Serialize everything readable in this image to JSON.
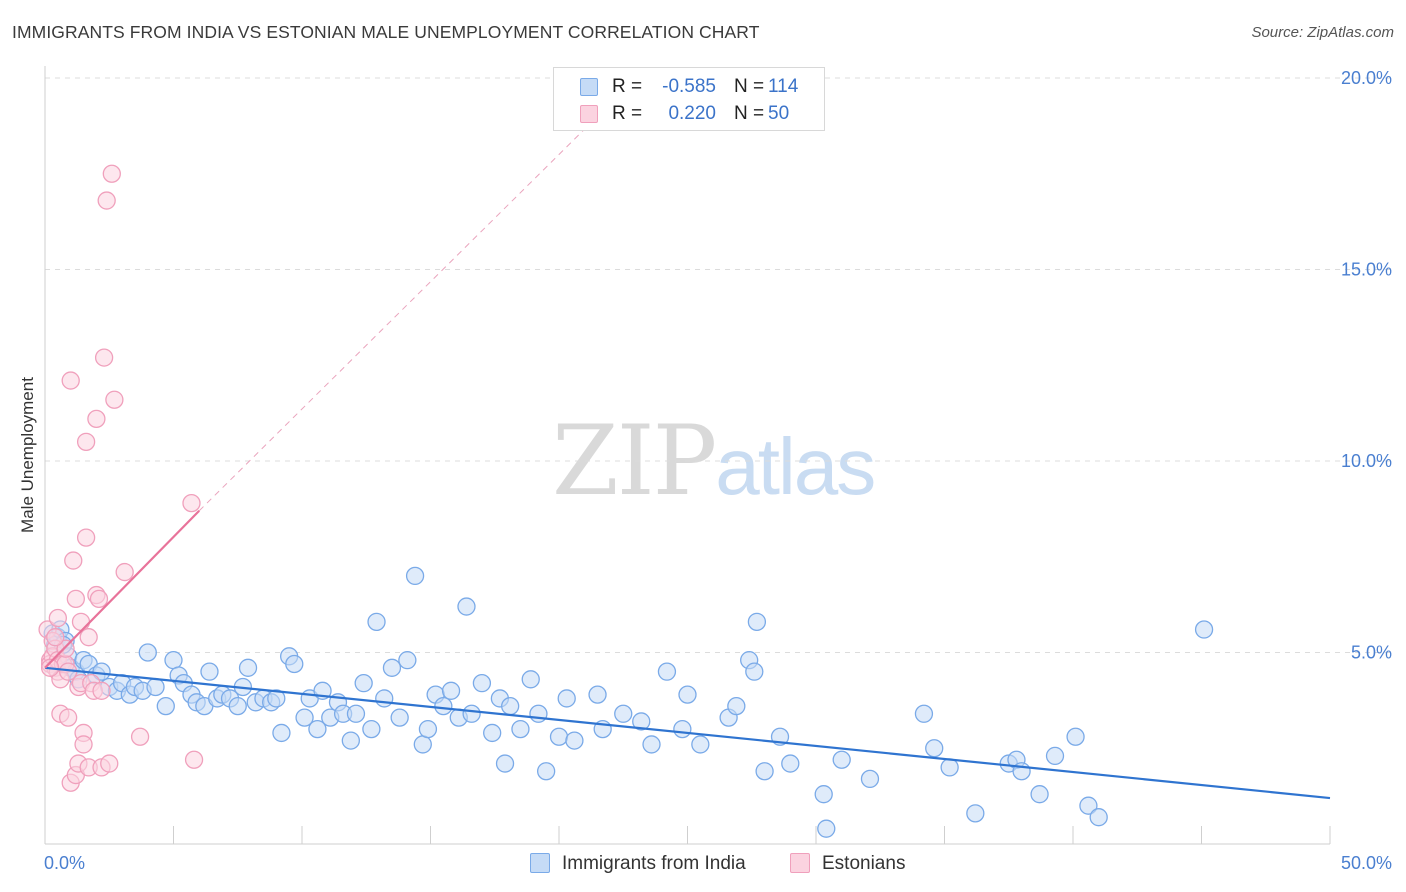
{
  "header": {
    "title": "IMMIGRANTS FROM INDIA VS ESTONIAN MALE UNEMPLOYMENT CORRELATION CHART",
    "source": "Source: ZipAtlas.com"
  },
  "watermark": {
    "part1": "ZIP",
    "part2": "atlas"
  },
  "legend": {
    "rows": [
      {
        "r_label": "R =",
        "r_value": "-0.585",
        "n_label": "N =",
        "n_value": "114",
        "color": "#7aaae8",
        "fill": "#c5dbf6"
      },
      {
        "r_label": "R =",
        "r_value": " 0.220",
        "n_label": "N =",
        "n_value": " 50",
        "color": "#f0a0bc",
        "fill": "#fbd3e0"
      }
    ]
  },
  "bottom_legend": {
    "items": [
      {
        "label": "Immigrants from India",
        "color": "#7aaae8",
        "fill": "#c5dbf6"
      },
      {
        "label": "Estonians",
        "color": "#f0a0bc",
        "fill": "#fbd3e0"
      }
    ]
  },
  "chart_data": {
    "type": "scatter",
    "title": "IMMIGRANTS FROM INDIA VS ESTONIAN MALE UNEMPLOYMENT CORRELATION CHART",
    "xlabel": "",
    "ylabel": "Male Unemployment",
    "xlim": [
      0,
      50
    ],
    "ylim": [
      0,
      20
    ],
    "x_tick_labels": [
      "0.0%",
      "50.0%"
    ],
    "y_tick_labels": [
      "5.0%",
      "10.0%",
      "15.0%",
      "20.0%"
    ],
    "y_ticks": [
      5,
      10,
      15,
      20
    ],
    "grid": "horizontal dashed",
    "legend_position": "top-center",
    "series": [
      {
        "name": "Immigrants from India",
        "color": "#5b93e0",
        "fill": "#c5dbf6",
        "stroke": "#7aaae8",
        "trend": {
          "x": [
            0,
            50
          ],
          "y": [
            4.6,
            1.2
          ],
          "color": "#2f74d0"
        },
        "points": [
          [
            0.3,
            5.5
          ],
          [
            0.4,
            5.2
          ],
          [
            0.5,
            5.4
          ],
          [
            0.6,
            5.6
          ],
          [
            0.8,
            5.3
          ],
          [
            0.9,
            4.9
          ],
          [
            1.0,
            4.6
          ],
          [
            1.2,
            4.5
          ],
          [
            1.5,
            4.8
          ],
          [
            1.7,
            4.7
          ],
          [
            2.0,
            4.4
          ],
          [
            2.2,
            4.5
          ],
          [
            2.5,
            4.1
          ],
          [
            2.8,
            4.0
          ],
          [
            3.0,
            4.2
          ],
          [
            3.3,
            3.9
          ],
          [
            3.5,
            4.1
          ],
          [
            3.8,
            4.0
          ],
          [
            4.0,
            5.0
          ],
          [
            4.3,
            4.1
          ],
          [
            4.7,
            3.6
          ],
          [
            5.0,
            4.8
          ],
          [
            5.2,
            4.4
          ],
          [
            5.4,
            4.2
          ],
          [
            5.7,
            3.9
          ],
          [
            5.9,
            3.7
          ],
          [
            6.2,
            3.6
          ],
          [
            6.4,
            4.5
          ],
          [
            6.7,
            3.8
          ],
          [
            6.9,
            3.9
          ],
          [
            7.2,
            3.8
          ],
          [
            7.5,
            3.6
          ],
          [
            7.7,
            4.1
          ],
          [
            7.9,
            4.6
          ],
          [
            8.2,
            3.7
          ],
          [
            8.5,
            3.8
          ],
          [
            8.8,
            3.7
          ],
          [
            9.0,
            3.8
          ],
          [
            9.2,
            2.9
          ],
          [
            9.5,
            4.9
          ],
          [
            9.7,
            4.7
          ],
          [
            10.1,
            3.3
          ],
          [
            10.3,
            3.8
          ],
          [
            10.6,
            3.0
          ],
          [
            10.8,
            4.0
          ],
          [
            11.1,
            3.3
          ],
          [
            11.4,
            3.7
          ],
          [
            11.6,
            3.4
          ],
          [
            11.9,
            2.7
          ],
          [
            12.1,
            3.4
          ],
          [
            12.4,
            4.2
          ],
          [
            12.7,
            3.0
          ],
          [
            12.9,
            5.8
          ],
          [
            13.2,
            3.8
          ],
          [
            13.5,
            4.6
          ],
          [
            13.8,
            3.3
          ],
          [
            14.1,
            4.8
          ],
          [
            14.4,
            7.0
          ],
          [
            14.7,
            2.6
          ],
          [
            14.9,
            3.0
          ],
          [
            15.2,
            3.9
          ],
          [
            15.5,
            3.6
          ],
          [
            15.8,
            4.0
          ],
          [
            16.1,
            3.3
          ],
          [
            16.4,
            6.2
          ],
          [
            16.6,
            3.4
          ],
          [
            17.0,
            4.2
          ],
          [
            17.4,
            2.9
          ],
          [
            17.7,
            3.8
          ],
          [
            17.9,
            2.1
          ],
          [
            18.1,
            3.6
          ],
          [
            18.5,
            3.0
          ],
          [
            18.9,
            4.3
          ],
          [
            19.2,
            3.4
          ],
          [
            19.5,
            1.9
          ],
          [
            20.0,
            2.8
          ],
          [
            20.3,
            3.8
          ],
          [
            20.6,
            2.7
          ],
          [
            21.5,
            3.9
          ],
          [
            21.7,
            3.0
          ],
          [
            22.5,
            3.4
          ],
          [
            23.2,
            3.2
          ],
          [
            23.6,
            2.6
          ],
          [
            24.2,
            4.5
          ],
          [
            24.8,
            3.0
          ],
          [
            25.0,
            3.9
          ],
          [
            25.5,
            2.6
          ],
          [
            26.6,
            3.3
          ],
          [
            26.9,
            3.6
          ],
          [
            27.4,
            4.8
          ],
          [
            27.6,
            4.5
          ],
          [
            27.7,
            5.8
          ],
          [
            28.0,
            1.9
          ],
          [
            28.6,
            2.8
          ],
          [
            29.0,
            2.1
          ],
          [
            30.3,
            1.3
          ],
          [
            30.4,
            0.4
          ],
          [
            31.0,
            2.2
          ],
          [
            32.1,
            1.7
          ],
          [
            34.2,
            3.4
          ],
          [
            34.6,
            2.5
          ],
          [
            35.2,
            2.0
          ],
          [
            36.2,
            0.8
          ],
          [
            37.5,
            2.1
          ],
          [
            37.8,
            2.2
          ],
          [
            38.0,
            1.9
          ],
          [
            38.7,
            1.3
          ],
          [
            39.3,
            2.3
          ],
          [
            40.1,
            2.8
          ],
          [
            40.6,
            1.0
          ],
          [
            41.0,
            0.7
          ],
          [
            45.1,
            5.6
          ],
          [
            0.7,
            5.2
          ],
          [
            1.3,
            4.3
          ]
        ]
      },
      {
        "name": "Estonians",
        "color": "#e8739a",
        "fill": "#fbd3e0",
        "stroke": "#f0a0bc",
        "trend": {
          "x": [
            0,
            6
          ],
          "y": [
            4.6,
            8.7
          ],
          "color": "#e8739a"
        },
        "trend_extension": {
          "x": [
            6,
            21.5
          ],
          "y": [
            8.7,
            19.0
          ]
        },
        "points": [
          [
            0.1,
            5.6
          ],
          [
            0.2,
            4.8
          ],
          [
            0.2,
            4.7
          ],
          [
            0.3,
            5.3
          ],
          [
            0.3,
            4.9
          ],
          [
            0.4,
            4.6
          ],
          [
            0.4,
            5.1
          ],
          [
            0.5,
            4.5
          ],
          [
            0.5,
            4.8
          ],
          [
            0.6,
            3.4
          ],
          [
            0.6,
            4.3
          ],
          [
            0.7,
            4.7
          ],
          [
            0.8,
            4.7
          ],
          [
            0.8,
            5.1
          ],
          [
            0.9,
            4.5
          ],
          [
            0.9,
            3.3
          ],
          [
            1.0,
            1.6
          ],
          [
            1.0,
            12.1
          ],
          [
            1.1,
            7.4
          ],
          [
            1.2,
            1.8
          ],
          [
            1.2,
            6.4
          ],
          [
            1.3,
            4.1
          ],
          [
            1.3,
            2.1
          ],
          [
            1.4,
            4.2
          ],
          [
            1.4,
            5.8
          ],
          [
            1.5,
            2.9
          ],
          [
            1.5,
            2.6
          ],
          [
            1.6,
            10.5
          ],
          [
            1.6,
            8.0
          ],
          [
            1.7,
            2.0
          ],
          [
            1.7,
            5.4
          ],
          [
            1.8,
            4.2
          ],
          [
            1.9,
            4.0
          ],
          [
            2.0,
            11.1
          ],
          [
            2.0,
            6.5
          ],
          [
            2.1,
            6.4
          ],
          [
            2.2,
            2.0
          ],
          [
            2.2,
            4.0
          ],
          [
            2.3,
            12.7
          ],
          [
            2.4,
            16.8
          ],
          [
            2.5,
            2.1
          ],
          [
            2.6,
            17.5
          ],
          [
            2.7,
            11.6
          ],
          [
            3.1,
            7.1
          ],
          [
            3.7,
            2.8
          ],
          [
            5.7,
            8.9
          ],
          [
            5.8,
            2.2
          ],
          [
            0.5,
            5.9
          ],
          [
            0.4,
            5.4
          ],
          [
            0.2,
            4.6
          ]
        ]
      }
    ]
  }
}
